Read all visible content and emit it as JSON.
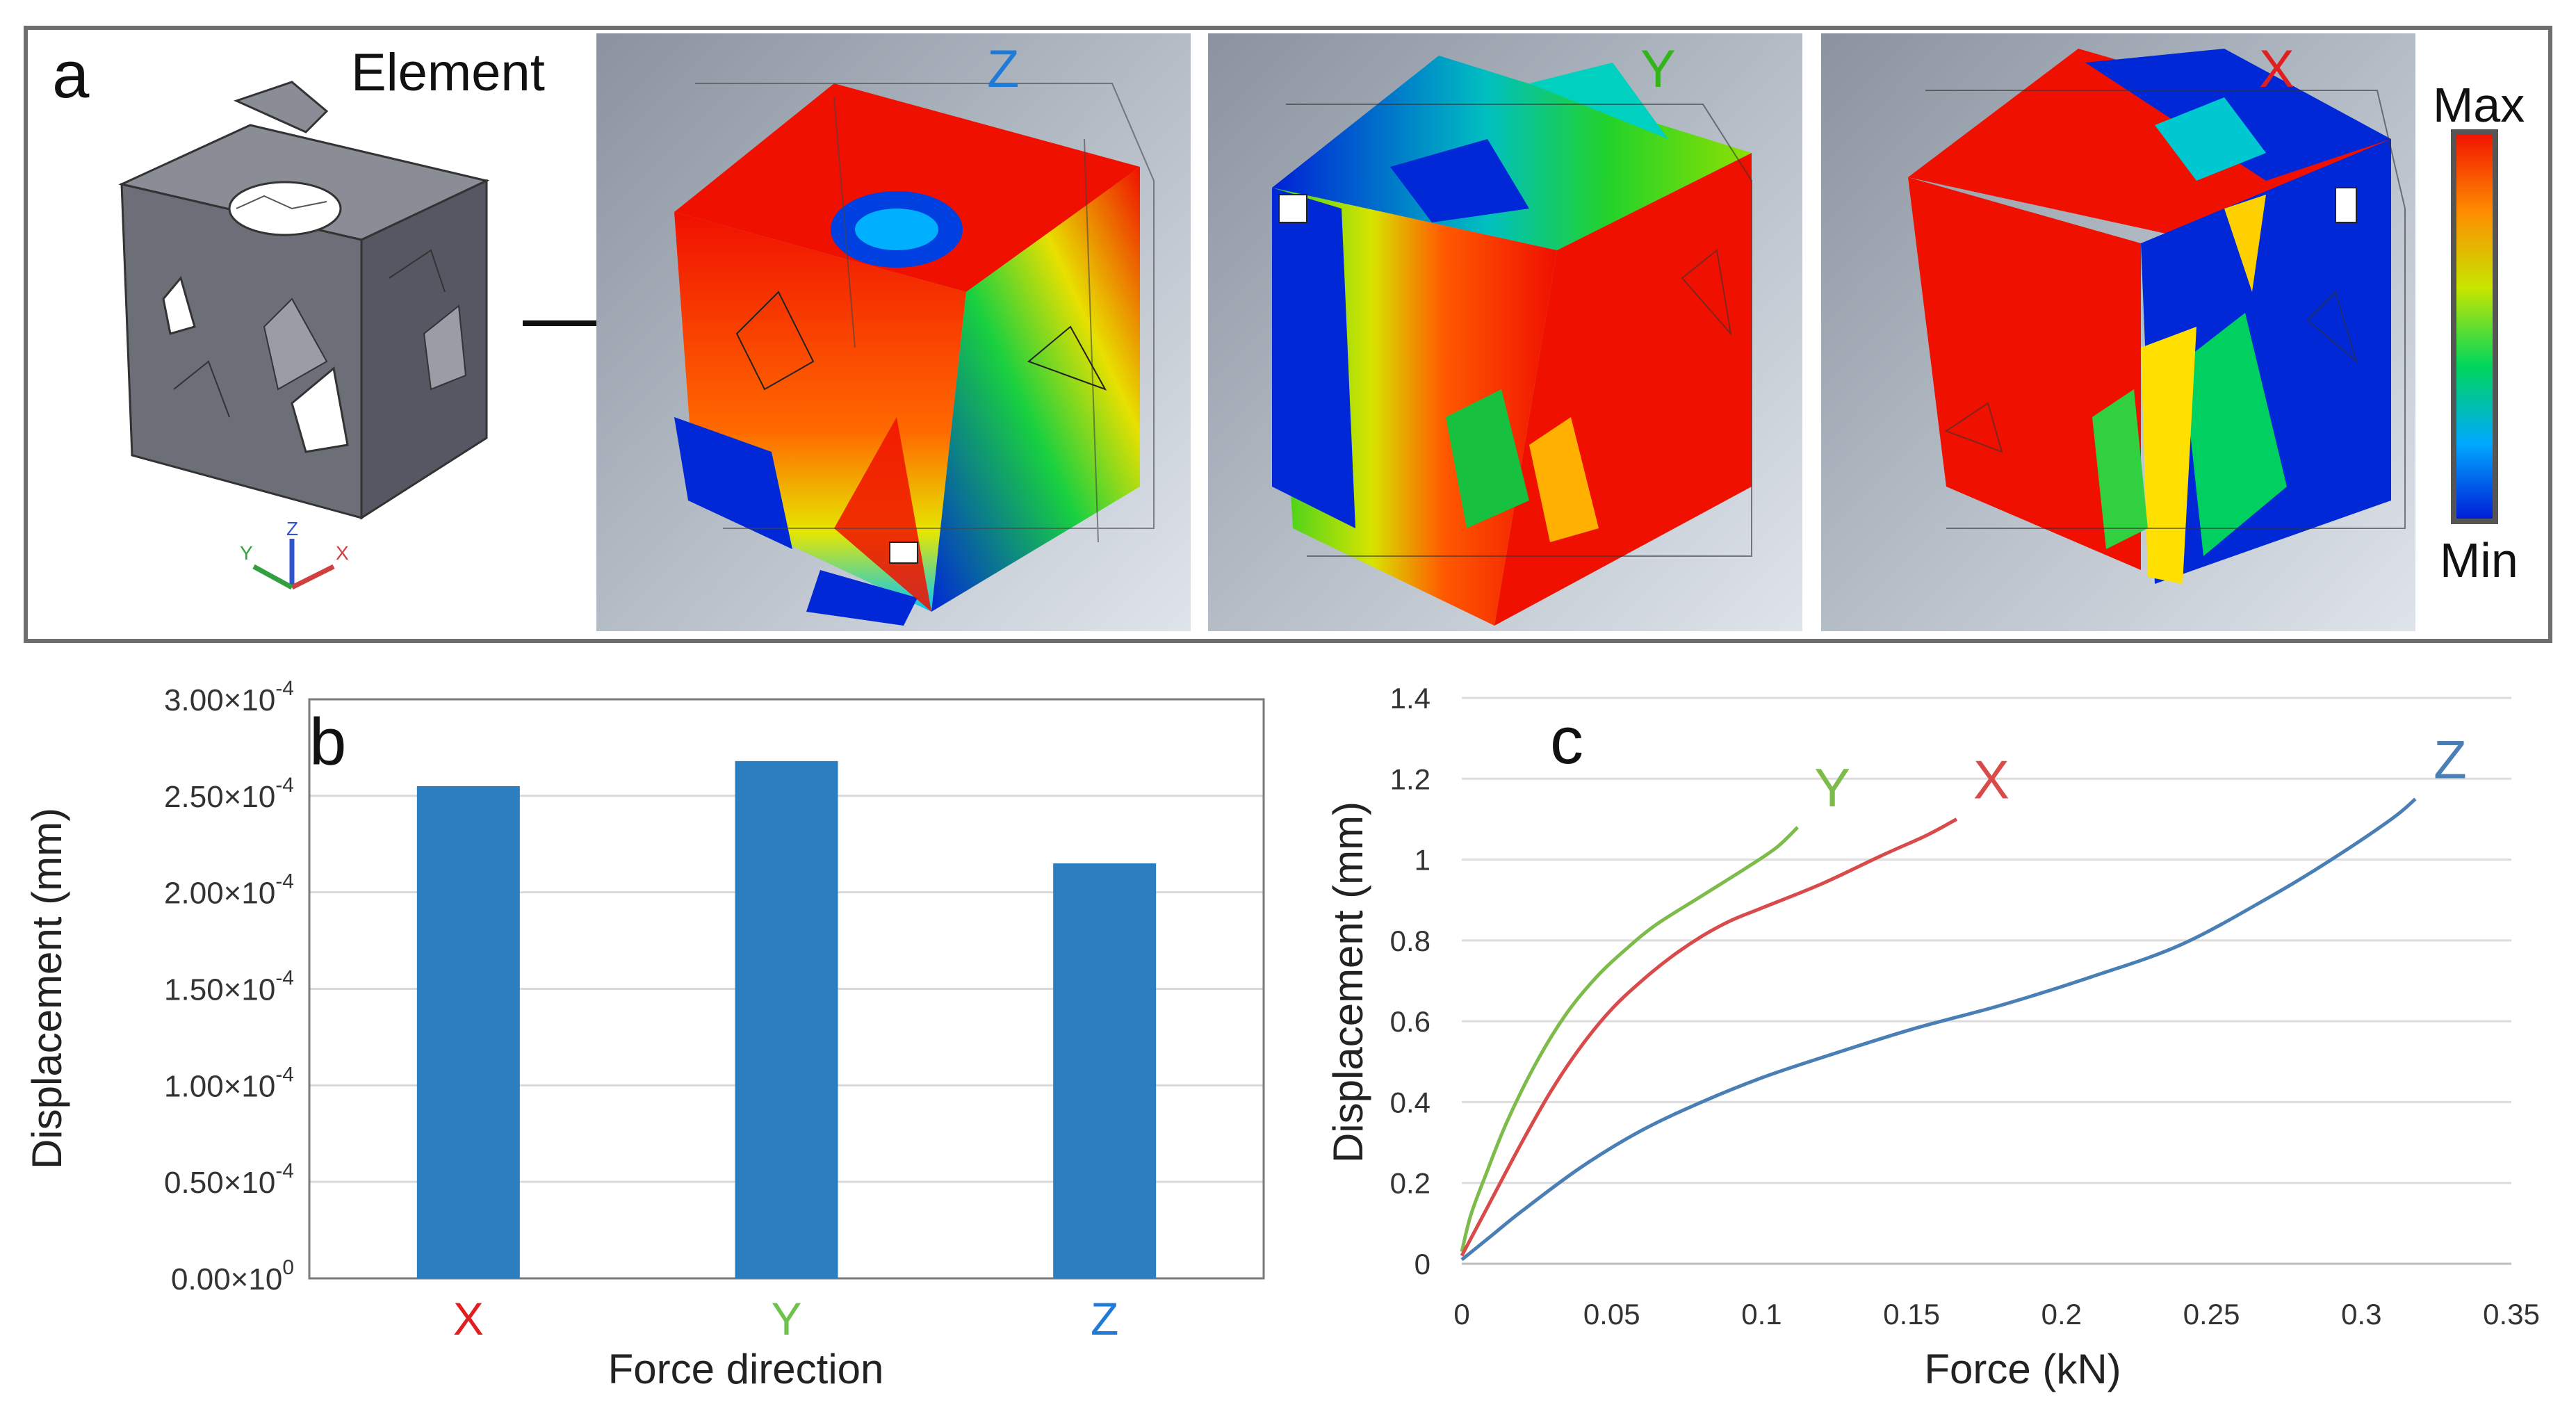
{
  "panel_a": {
    "label": "a",
    "element_title": "Element",
    "views": [
      {
        "direction": "Z",
        "color": "#1f7ad8"
      },
      {
        "direction": "Y",
        "color": "#33b51a"
      },
      {
        "direction": "X",
        "color": "#e02020"
      }
    ],
    "legend": {
      "max_label": "Max",
      "min_label": "Min"
    },
    "axis_triad": {
      "x": "X",
      "y": "Y",
      "z": "Z"
    }
  },
  "chart_data": [
    {
      "panel_label": "b",
      "type": "bar",
      "title": "",
      "categories": [
        "X",
        "Y",
        "Z"
      ],
      "category_colors": [
        "#e02020",
        "#6cc24a",
        "#1f7ad8"
      ],
      "values": [
        0.000255,
        0.000268,
        0.000215
      ],
      "bar_color": "#2b7fc1",
      "xlabel": "Force direction",
      "ylabel": "Displacement (mm)",
      "ylim": [
        0,
        0.0003
      ],
      "ytick_labels": [
        {
          "mant": "0.00×10",
          "exp": "0"
        },
        {
          "mant": "0.50×10",
          "exp": "-4"
        },
        {
          "mant": "1.00×10",
          "exp": "-4"
        },
        {
          "mant": "1.50×10",
          "exp": "-4"
        },
        {
          "mant": "2.00×10",
          "exp": "-4"
        },
        {
          "mant": "2.50×10",
          "exp": "-4"
        },
        {
          "mant": "3.00×10",
          "exp": "-4"
        }
      ],
      "grid": true
    },
    {
      "panel_label": "c",
      "type": "line",
      "title": "",
      "xlabel": "Force (kN)",
      "ylabel": "Displacement (mm)",
      "xlim": [
        0,
        0.35
      ],
      "ylim": [
        0,
        1.4
      ],
      "xtick_labels": [
        "0",
        "0.05",
        "0.1",
        "0.15",
        "0.2",
        "0.25",
        "0.3",
        "0.35"
      ],
      "ytick_labels": [
        "0",
        "0.2",
        "0.4",
        "0.6",
        "0.8",
        "1",
        "1.2",
        "1.4"
      ],
      "grid": true,
      "series": [
        {
          "name": "Y",
          "color": "#7dbb4a",
          "x": [
            0,
            0.003,
            0.008,
            0.015,
            0.025,
            0.035,
            0.045,
            0.055,
            0.065,
            0.08,
            0.095,
            0.105,
            0.112
          ],
          "y": [
            0.03,
            0.12,
            0.22,
            0.35,
            0.5,
            0.62,
            0.71,
            0.78,
            0.84,
            0.91,
            0.98,
            1.03,
            1.08
          ]
        },
        {
          "name": "X",
          "color": "#d94a4a",
          "x": [
            0,
            0.005,
            0.01,
            0.02,
            0.03,
            0.04,
            0.05,
            0.06,
            0.07,
            0.08,
            0.09,
            0.1,
            0.12,
            0.14,
            0.155,
            0.165
          ],
          "y": [
            0.02,
            0.09,
            0.16,
            0.3,
            0.43,
            0.54,
            0.63,
            0.7,
            0.76,
            0.81,
            0.85,
            0.88,
            0.94,
            1.01,
            1.06,
            1.1
          ]
        },
        {
          "name": "Z",
          "color": "#4a7fb5",
          "x": [
            0,
            0.01,
            0.02,
            0.04,
            0.06,
            0.08,
            0.1,
            0.12,
            0.15,
            0.18,
            0.21,
            0.24,
            0.27,
            0.29,
            0.31,
            0.318
          ],
          "y": [
            0.01,
            0.07,
            0.13,
            0.24,
            0.33,
            0.4,
            0.46,
            0.51,
            0.58,
            0.64,
            0.71,
            0.79,
            0.91,
            1.0,
            1.1,
            1.15
          ]
        }
      ]
    }
  ]
}
